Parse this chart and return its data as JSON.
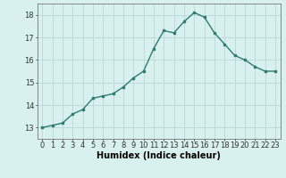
{
  "x": [
    0,
    1,
    2,
    3,
    4,
    5,
    6,
    7,
    8,
    9,
    10,
    11,
    12,
    13,
    14,
    15,
    16,
    17,
    18,
    19,
    20,
    21,
    22,
    23
  ],
  "y": [
    13.0,
    13.1,
    13.2,
    13.6,
    13.8,
    14.3,
    14.4,
    14.5,
    14.8,
    15.2,
    15.5,
    16.5,
    17.3,
    17.2,
    17.7,
    18.1,
    17.9,
    17.2,
    16.7,
    16.2,
    16.0,
    15.7,
    15.5,
    15.5
  ],
  "xlabel": "Humidex (Indice chaleur)",
  "ylim": [
    12.5,
    18.5
  ],
  "xlim": [
    -0.5,
    23.5
  ],
  "yticks": [
    13,
    14,
    15,
    16,
    17,
    18
  ],
  "xticks": [
    0,
    1,
    2,
    3,
    4,
    5,
    6,
    7,
    8,
    9,
    10,
    11,
    12,
    13,
    14,
    15,
    16,
    17,
    18,
    19,
    20,
    21,
    22,
    23
  ],
  "line_color": "#2e7d6e",
  "marker_color": "#2e7d6e",
  "bg_color": "#d8f0ee",
  "grid_color": "#b8d8d4",
  "axis_label_fontsize": 7,
  "tick_fontsize": 6
}
